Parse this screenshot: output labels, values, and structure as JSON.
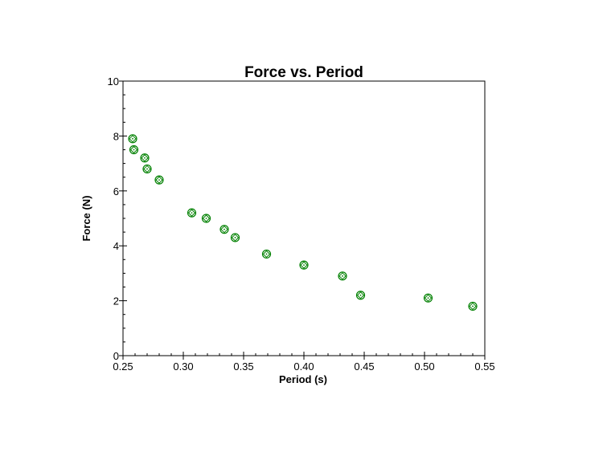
{
  "chart_data": {
    "type": "scatter",
    "title": "Force vs. Period",
    "xlabel": "Period (s)",
    "ylabel": "Force (N)",
    "xlim": [
      0.25,
      0.55
    ],
    "ylim": [
      0,
      10
    ],
    "x_ticks": [
      "0.25",
      "0.30",
      "0.35",
      "0.40",
      "0.45",
      "0.50",
      "0.55"
    ],
    "y_ticks": [
      "0",
      "2",
      "4",
      "6",
      "8",
      "10"
    ],
    "grid": false,
    "marker_color": "#008000",
    "marker": "circle-with-diamond-and-dot",
    "series": [
      {
        "x": [
          0.258,
          0.259,
          0.268,
          0.27,
          0.28,
          0.307,
          0.319,
          0.334,
          0.343,
          0.369,
          0.4,
          0.432,
          0.447,
          0.503,
          0.54
        ],
        "y": [
          7.9,
          7.5,
          7.2,
          6.8,
          6.4,
          5.2,
          5.0,
          4.6,
          4.3,
          3.7,
          3.3,
          2.9,
          2.2,
          2.1,
          1.8
        ]
      }
    ]
  }
}
